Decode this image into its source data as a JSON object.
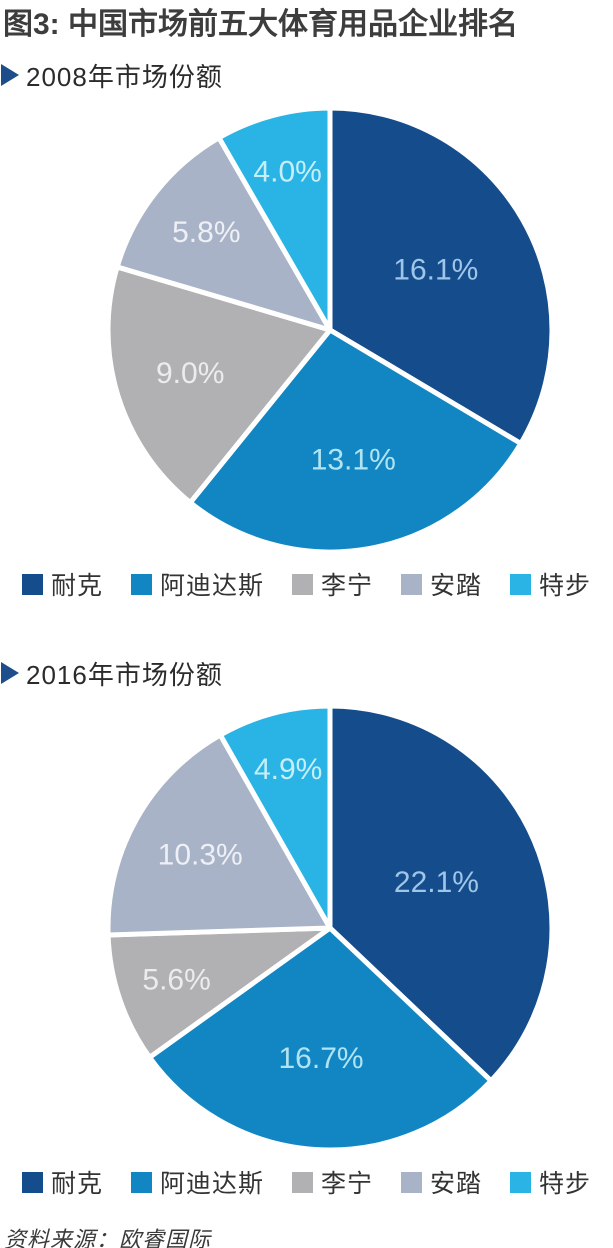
{
  "header": {
    "title": "图3: 中国市场前五大体育用品企业排名"
  },
  "footer": {
    "source": "资料来源：欧睿国际"
  },
  "legend": {
    "items": [
      {
        "label": "耐克",
        "color": "#154d8c"
      },
      {
        "label": "阿迪达斯",
        "color": "#1286c3"
      },
      {
        "label": "李宁",
        "color": "#b1b1b3"
      },
      {
        "label": "安踏",
        "color": "#a8b3c8"
      },
      {
        "label": "特步",
        "color": "#2ab4e5"
      }
    ]
  },
  "chart_data": [
    {
      "type": "pie",
      "title": "2008年市场份额",
      "categories": [
        "耐克",
        "阿迪达斯",
        "李宁",
        "安踏",
        "特步"
      ],
      "values": [
        16.1,
        13.1,
        9.0,
        5.8,
        4.0
      ],
      "labels": [
        "16.1%",
        "13.1%",
        "9.0%",
        "5.8%",
        "4.0%"
      ],
      "colors": [
        "#154d8c",
        "#1286c3",
        "#b1b1b3",
        "#a8b3c8",
        "#2ab4e5"
      ],
      "label_colors": [
        "#9fc5e8",
        "#b0e4f2",
        "#ececee",
        "#eef0f5",
        "#c5eef9"
      ],
      "start_angle_deg": 0,
      "direction": "clockwise",
      "slice_gap_color": "#ffffff",
      "legend_position": "bottom"
    },
    {
      "type": "pie",
      "title": "2016年市场份额",
      "categories": [
        "耐克",
        "阿迪达斯",
        "李宁",
        "安踏",
        "特步"
      ],
      "values": [
        22.1,
        16.7,
        5.6,
        10.3,
        4.9
      ],
      "labels": [
        "22.1%",
        "16.7%",
        "5.6%",
        "10.3%",
        "4.9%"
      ],
      "colors": [
        "#154d8c",
        "#1286c3",
        "#b1b1b3",
        "#a8b3c8",
        "#2ab4e5"
      ],
      "label_colors": [
        "#9fc5e8",
        "#b0e4f2",
        "#ececee",
        "#eef0f5",
        "#c5eef9"
      ],
      "start_angle_deg": 0,
      "direction": "clockwise",
      "slice_gap_color": "#ffffff",
      "legend_position": "bottom"
    }
  ]
}
